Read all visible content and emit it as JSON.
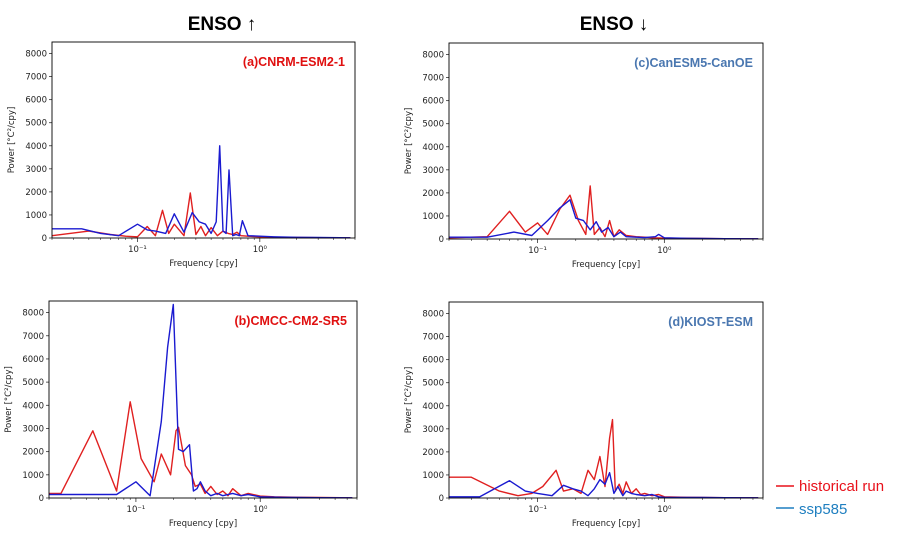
{
  "column_titles": {
    "left": "ENSO ↑",
    "right": "ENSO ↓"
  },
  "legend": {
    "historical": {
      "label": "historical run",
      "color": "#e8101a"
    },
    "ssp585": {
      "label": "ssp585",
      "color": "#1f7fc0"
    }
  },
  "colors": {
    "historical": "#e02020",
    "ssp585": "#1a1ad0",
    "red_title": "#e01010",
    "blue_title": "#4a77b0"
  },
  "chart_data": [
    {
      "type": "line",
      "title": "(a)CNRM-ESM2-1",
      "title_color": "red",
      "xlabel": "Frequency [cpy]",
      "ylabel": "Power [°C²/cpy]",
      "xscale": "log",
      "xlim": [
        0.02,
        6
      ],
      "ylim": [
        0,
        8500
      ],
      "yticks": [
        0,
        1000,
        2000,
        3000,
        4000,
        5000,
        6000,
        7000,
        8000
      ],
      "xticks": [
        {
          "value": 0.1,
          "label": "10⁻¹"
        },
        {
          "value": 1,
          "label": "10⁰"
        }
      ],
      "series": [
        {
          "key": "historical",
          "x": [
            0.02,
            0.04,
            0.06,
            0.08,
            0.1,
            0.12,
            0.14,
            0.16,
            0.18,
            0.2,
            0.24,
            0.27,
            0.3,
            0.33,
            0.36,
            0.4,
            0.45,
            0.5,
            0.55,
            0.6,
            0.65,
            0.7,
            0.8,
            0.9,
            1.0,
            1.2,
            1.5,
            2,
            3,
            4,
            5.5
          ],
          "y": [
            100,
            300,
            150,
            80,
            50,
            500,
            100,
            1200,
            200,
            600,
            100,
            1950,
            150,
            500,
            100,
            450,
            100,
            300,
            200,
            150,
            250,
            100,
            80,
            60,
            50,
            40,
            30,
            20,
            15,
            10,
            10
          ]
        },
        {
          "key": "ssp585",
          "x": [
            0.02,
            0.035,
            0.05,
            0.07,
            0.1,
            0.12,
            0.14,
            0.17,
            0.2,
            0.24,
            0.28,
            0.32,
            0.36,
            0.4,
            0.44,
            0.47,
            0.5,
            0.53,
            0.56,
            0.6,
            0.64,
            0.68,
            0.72,
            0.8,
            1.0,
            1.3,
            2,
            3,
            5.5
          ],
          "y": [
            400,
            400,
            200,
            100,
            600,
            350,
            300,
            200,
            1050,
            250,
            1100,
            700,
            600,
            200,
            700,
            4000,
            300,
            200,
            2950,
            100,
            150,
            100,
            750,
            100,
            80,
            50,
            30,
            20,
            10
          ]
        }
      ]
    },
    {
      "type": "line",
      "title": "(c)CanESM5-CanOE",
      "title_color": "blue",
      "xlabel": "Frequency [cpy]",
      "ylabel": "Power [°C²/cpy]",
      "xscale": "log",
      "xlim": [
        0.02,
        6
      ],
      "ylim": [
        0,
        8500
      ],
      "yticks": [
        0,
        1000,
        2000,
        3000,
        4000,
        5000,
        6000,
        7000,
        8000
      ],
      "xticks": [
        {
          "value": 0.1,
          "label": "10⁻¹"
        },
        {
          "value": 1,
          "label": "10⁰"
        }
      ],
      "series": [
        {
          "key": "historical",
          "x": [
            0.02,
            0.04,
            0.06,
            0.08,
            0.1,
            0.12,
            0.15,
            0.18,
            0.21,
            0.24,
            0.26,
            0.28,
            0.31,
            0.34,
            0.37,
            0.4,
            0.44,
            0.5,
            0.6,
            0.7,
            0.8,
            1.0,
            1.5,
            2,
            3,
            5.5
          ],
          "y": [
            50,
            100,
            1200,
            300,
            700,
            200,
            1300,
            1900,
            800,
            200,
            2300,
            200,
            500,
            100,
            800,
            100,
            400,
            150,
            100,
            80,
            50,
            40,
            30,
            20,
            15,
            10
          ]
        },
        {
          "key": "ssp585",
          "x": [
            0.02,
            0.04,
            0.065,
            0.09,
            0.12,
            0.15,
            0.18,
            0.2,
            0.23,
            0.26,
            0.29,
            0.32,
            0.36,
            0.4,
            0.45,
            0.5,
            0.6,
            0.7,
            0.85,
            0.9,
            1.0,
            1.5,
            2,
            3,
            5.5
          ],
          "y": [
            80,
            80,
            300,
            150,
            800,
            1350,
            1700,
            900,
            800,
            400,
            750,
            300,
            500,
            100,
            300,
            100,
            80,
            60,
            100,
            200,
            50,
            30,
            20,
            15,
            10
          ]
        }
      ]
    },
    {
      "type": "line",
      "title": "(b)CMCC-CM2-SR5",
      "title_color": "red",
      "xlabel": "Frequency [cpy]",
      "ylabel": "Power [°C²/cpy]",
      "xscale": "log",
      "xlim": [
        0.02,
        6
      ],
      "ylim": [
        0,
        8500
      ],
      "yticks": [
        0,
        1000,
        2000,
        3000,
        4000,
        5000,
        6000,
        7000,
        8000
      ],
      "xticks": [
        {
          "value": 0.1,
          "label": "10⁻¹"
        },
        {
          "value": 1,
          "label": "10⁰"
        }
      ],
      "series": [
        {
          "key": "historical",
          "x": [
            0.02,
            0.025,
            0.045,
            0.07,
            0.09,
            0.11,
            0.14,
            0.16,
            0.19,
            0.21,
            0.22,
            0.25,
            0.28,
            0.3,
            0.33,
            0.36,
            0.4,
            0.45,
            0.5,
            0.55,
            0.6,
            0.7,
            0.8,
            1.0,
            1.3,
            2,
            3,
            5.5
          ],
          "y": [
            200,
            200,
            2900,
            300,
            4150,
            1700,
            700,
            1900,
            1000,
            2900,
            3050,
            1400,
            1000,
            500,
            600,
            200,
            500,
            150,
            300,
            100,
            400,
            100,
            200,
            80,
            50,
            30,
            20,
            10
          ]
        },
        {
          "key": "ssp585",
          "x": [
            0.02,
            0.04,
            0.07,
            0.1,
            0.13,
            0.16,
            0.18,
            0.2,
            0.22,
            0.24,
            0.27,
            0.29,
            0.31,
            0.33,
            0.36,
            0.4,
            0.45,
            0.5,
            0.6,
            0.7,
            0.8,
            1.0,
            1.5,
            2,
            3,
            5.5
          ],
          "y": [
            150,
            150,
            150,
            700,
            100,
            3300,
            6500,
            8350,
            2100,
            2000,
            2300,
            300,
            400,
            700,
            300,
            100,
            200,
            100,
            200,
            100,
            150,
            50,
            30,
            20,
            15,
            10
          ]
        }
      ]
    },
    {
      "type": "line",
      "title": "(d)KIOST-ESM",
      "title_color": "blue",
      "xlabel": "Frequency [cpy]",
      "ylabel": "Power [°C²/cpy]",
      "xscale": "log",
      "xlim": [
        0.02,
        6
      ],
      "ylim": [
        0,
        8500
      ],
      "yticks": [
        0,
        1000,
        2000,
        3000,
        4000,
        5000,
        6000,
        7000,
        8000
      ],
      "xticks": [
        {
          "value": 0.1,
          "label": "10⁻¹"
        },
        {
          "value": 1,
          "label": "10⁰"
        }
      ],
      "series": [
        {
          "key": "historical",
          "x": [
            0.02,
            0.03,
            0.05,
            0.07,
            0.09,
            0.11,
            0.14,
            0.16,
            0.19,
            0.22,
            0.25,
            0.28,
            0.31,
            0.34,
            0.37,
            0.39,
            0.41,
            0.44,
            0.47,
            0.5,
            0.55,
            0.6,
            0.65,
            0.7,
            0.8,
            0.9,
            1.0,
            1.5,
            2,
            3,
            5.5
          ],
          "y": [
            900,
            900,
            300,
            100,
            200,
            500,
            1200,
            300,
            400,
            200,
            1200,
            800,
            1800,
            500,
            2600,
            3400,
            300,
            600,
            200,
            700,
            200,
            400,
            150,
            200,
            100,
            150,
            50,
            30,
            20,
            15,
            10
          ]
        },
        {
          "key": "ssp585",
          "x": [
            0.02,
            0.035,
            0.06,
            0.08,
            0.1,
            0.13,
            0.16,
            0.19,
            0.22,
            0.25,
            0.28,
            0.31,
            0.34,
            0.37,
            0.4,
            0.43,
            0.47,
            0.5,
            0.55,
            0.6,
            0.7,
            0.8,
            0.9,
            1.0,
            1.5,
            2,
            3,
            5.5
          ],
          "y": [
            50,
            50,
            750,
            300,
            200,
            100,
            550,
            400,
            300,
            100,
            400,
            800,
            600,
            1100,
            200,
            500,
            100,
            300,
            200,
            150,
            100,
            150,
            50,
            30,
            20,
            20,
            15,
            10
          ]
        }
      ]
    }
  ]
}
